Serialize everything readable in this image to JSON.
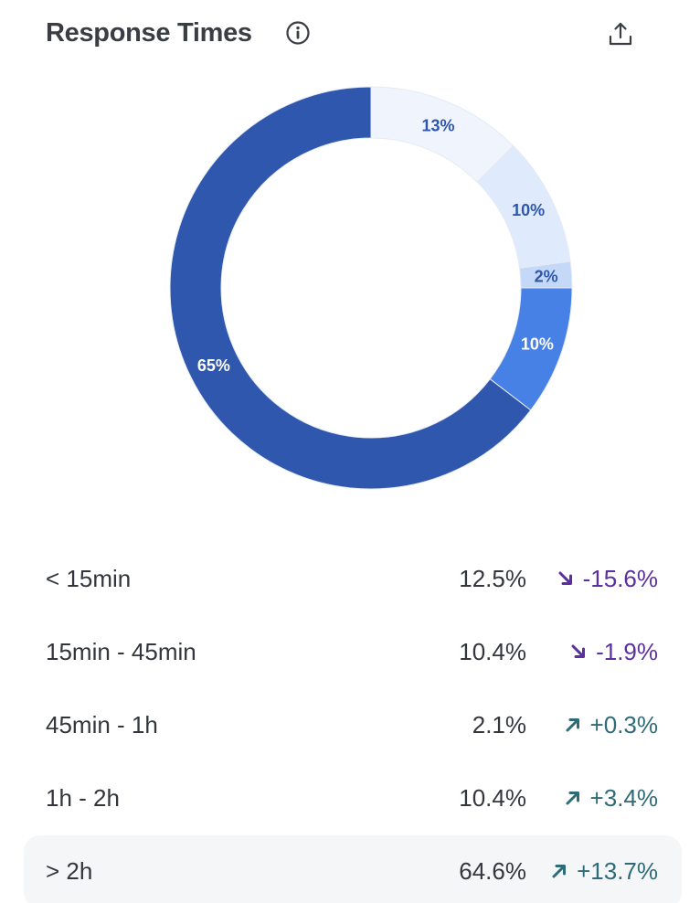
{
  "header": {
    "title": "Response Times",
    "info_icon": "info-circle-icon",
    "export_icon": "share-upload-icon"
  },
  "colors": {
    "dark_blue": "#2e57ad",
    "mid_blue": "#4881e6",
    "light_blue": "#c4d8f7",
    "lighter_blue": "#dfeafc",
    "lightest_blue": "#eff4fd",
    "negative": "#5b2fa0",
    "positive": "#2e6b78"
  },
  "chart_data": {
    "type": "pie",
    "variant": "donut",
    "slice_order": "clockwise-from-top",
    "slices": [
      {
        "label": "< 15min",
        "value": 12.5,
        "display": "13%",
        "color": "#eff4fd",
        "text_color": "#2e57ad"
      },
      {
        "label": "15min - 45min",
        "value": 10.4,
        "display": "10%",
        "color": "#dfeafc",
        "text_color": "#2e57ad"
      },
      {
        "label": "45min - 1h",
        "value": 2.1,
        "display": "2%",
        "color": "#c4d8f7",
        "text_color": "#2e57ad"
      },
      {
        "label": "1h - 2h",
        "value": 10.4,
        "display": "10%",
        "color": "#4881e6",
        "text_color": "#ffffff"
      },
      {
        "label": "> 2h",
        "value": 64.6,
        "display": "65%",
        "color": "#2e57ad",
        "text_color": "#ffffff"
      }
    ]
  },
  "legend": {
    "rows": [
      {
        "label": "< 15min",
        "value": "12.5%",
        "change": "-15.6%",
        "trend": "down",
        "trend_icon": "arrow-down-right-icon",
        "highlighted": false
      },
      {
        "label": "15min - 45min",
        "value": "10.4%",
        "change": "-1.9%",
        "trend": "down",
        "trend_icon": "arrow-down-right-icon",
        "highlighted": false
      },
      {
        "label": "45min - 1h",
        "value": "2.1%",
        "change": "+0.3%",
        "trend": "up",
        "trend_icon": "arrow-up-right-icon",
        "highlighted": false
      },
      {
        "label": "1h - 2h",
        "value": "10.4%",
        "change": "+3.4%",
        "trend": "up",
        "trend_icon": "arrow-up-right-icon",
        "highlighted": false
      },
      {
        "label": "> 2h",
        "value": "64.6%",
        "change": "+13.7%",
        "trend": "up",
        "trend_icon": "arrow-up-right-icon",
        "highlighted": true
      }
    ]
  }
}
